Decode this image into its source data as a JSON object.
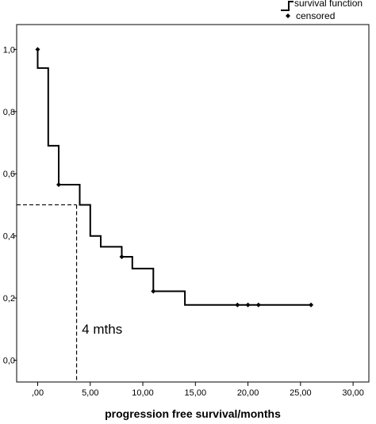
{
  "chart_data": {
    "type": "line",
    "xlabel": "progression free survival/months",
    "ylabel": "",
    "xlim": [
      -2,
      31.5
    ],
    "ylim": [
      -0.07,
      1.08
    ],
    "x_ticks": [
      0,
      5,
      10,
      15,
      20,
      25,
      30
    ],
    "x_tick_labels": [
      ",00",
      "5,00",
      "10,00",
      "15,00",
      "20,00",
      "25,00",
      "30,00"
    ],
    "y_ticks": [
      0.0,
      0.2,
      0.4,
      0.6,
      0.8,
      1.0
    ],
    "y_tick_labels": [
      "0,0",
      "0,2",
      "0,4",
      "0,6",
      "0,8",
      "1,0"
    ],
    "grid": false,
    "legend_position": "top-right",
    "series": [
      {
        "name": "survival function",
        "style": "step",
        "points": [
          [
            0,
            1.0
          ],
          [
            0,
            0.94
          ],
          [
            1,
            0.94
          ],
          [
            1,
            0.69
          ],
          [
            2,
            0.69
          ],
          [
            2,
            0.565
          ],
          [
            4,
            0.565
          ],
          [
            4,
            0.5
          ],
          [
            5,
            0.5
          ],
          [
            5,
            0.4
          ],
          [
            6,
            0.4
          ],
          [
            6,
            0.365
          ],
          [
            8,
            0.365
          ],
          [
            8,
            0.333
          ],
          [
            9,
            0.333
          ],
          [
            9,
            0.295
          ],
          [
            11,
            0.295
          ],
          [
            11,
            0.222
          ],
          [
            14,
            0.222
          ],
          [
            14,
            0.178
          ],
          [
            26,
            0.178
          ]
        ]
      },
      {
        "name": "censored",
        "style": "marker",
        "points": [
          [
            0,
            1.0
          ],
          [
            2,
            0.565
          ],
          [
            8,
            0.333
          ],
          [
            11,
            0.222
          ],
          [
            19,
            0.178
          ],
          [
            20,
            0.178
          ],
          [
            21,
            0.178
          ],
          [
            26,
            0.178
          ]
        ]
      }
    ],
    "reference_lines": {
      "median_y": 0.5,
      "median_x": 3.7
    },
    "annotations": [
      {
        "text": "4 mths",
        "x": 4.2,
        "y": 0.085
      }
    ]
  },
  "legend": {
    "items": [
      "survival function",
      "censored"
    ]
  }
}
